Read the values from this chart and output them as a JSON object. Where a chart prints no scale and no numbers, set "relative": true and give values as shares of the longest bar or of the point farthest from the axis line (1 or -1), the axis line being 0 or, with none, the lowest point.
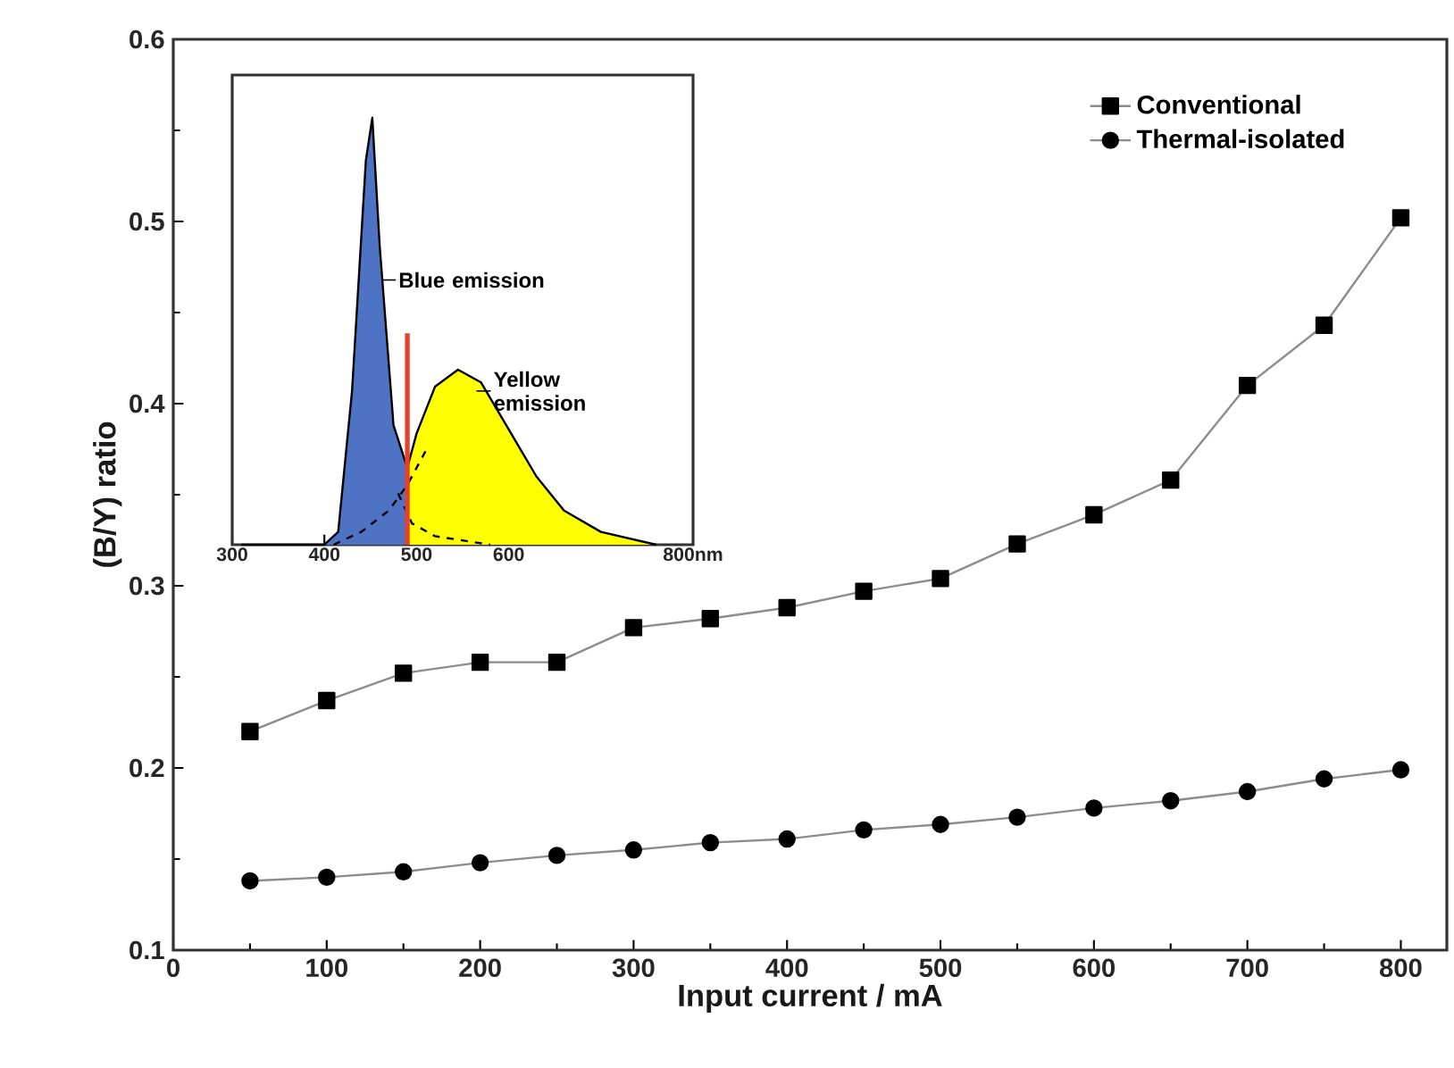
{
  "chart_data": [
    {
      "type": "line",
      "xlabel": "Input current / mA",
      "ylabel": "(B/Y) ratio",
      "x": [
        50,
        100,
        150,
        200,
        250,
        300,
        350,
        400,
        450,
        500,
        550,
        600,
        650,
        700,
        750,
        800
      ],
      "series": [
        {
          "name": "Conventional",
          "color": "#000000",
          "marker": "square",
          "values": [
            0.22,
            0.237,
            0.252,
            0.258,
            0.258,
            0.277,
            0.282,
            0.288,
            0.297,
            0.304,
            0.323,
            0.339,
            0.358,
            0.41,
            0.443,
            0.502
          ]
        },
        {
          "name": "Thermal-isolated",
          "color": "#000000",
          "marker": "circle",
          "values": [
            0.138,
            0.14,
            0.143,
            0.148,
            0.152,
            0.155,
            0.159,
            0.161,
            0.166,
            0.169,
            0.173,
            0.178,
            0.182,
            0.187,
            0.194,
            0.199
          ]
        }
      ],
      "xlim": [
        0,
        830
      ],
      "xticks": [
        0,
        100,
        200,
        300,
        400,
        500,
        600,
        700,
        800
      ],
      "ylim": [
        0.1,
        0.6
      ],
      "yticks": [
        0.1,
        0.2,
        0.3,
        0.4,
        0.5,
        0.6
      ],
      "legend": "top right",
      "grid": false
    },
    {
      "type": "area",
      "relative": true,
      "xlim": [
        300,
        800
      ],
      "xticks": [
        300,
        400,
        500,
        600,
        {
          "value": 800,
          "label": "800nm"
        }
      ],
      "series": [
        {
          "type": "area",
          "color": "#4f73c4",
          "x": [
            400,
            415,
            430,
            445,
            452,
            460,
            475,
            490
          ],
          "values": [
            0,
            0.03,
            0.36,
            0.9,
            1.0,
            0.7,
            0.28,
            0.18
          ]
        },
        {
          "type": "area",
          "color": "#ffff00",
          "x": [
            490,
            500,
            520,
            545,
            570,
            600,
            630,
            660,
            700,
            760
          ],
          "values": [
            0.18,
            0.26,
            0.37,
            0.41,
            0.38,
            0.27,
            0.16,
            0.08,
            0.03,
            0
          ]
        },
        {
          "type": "line",
          "line_style": "dashed",
          "color": "#000000",
          "x": [
            410,
            440,
            470,
            490,
            510
          ],
          "values": [
            0,
            0.03,
            0.08,
            0.14,
            0.22
          ]
        },
        {
          "type": "line",
          "line_style": "dashed",
          "color": "#000000",
          "x": [
            480,
            495,
            520,
            550,
            580
          ],
          "values": [
            0.12,
            0.05,
            0.02,
            0.01,
            0
          ]
        },
        {
          "type": "line",
          "color": "#000000",
          "x": [
            310,
            400,
            415,
            430,
            445,
            452,
            460,
            475,
            490,
            500,
            520,
            545,
            570,
            600,
            630,
            660,
            700,
            760
          ],
          "values": [
            0,
            0,
            0.03,
            0.36,
            0.9,
            1.0,
            0.7,
            0.28,
            0.18,
            0.26,
            0.37,
            0.41,
            0.38,
            0.27,
            0.16,
            0.08,
            0.03,
            0
          ]
        }
      ],
      "ref_lines": [
        {
          "axis": "x",
          "value": 490,
          "color": "#e8402a"
        }
      ],
      "annotations": [
        {
          "text": "Blue emission",
          "x": 462,
          "y": 0.62
        },
        {
          "text": "Yellow emission",
          "x": 565,
          "y": 0.36
        }
      ]
    }
  ]
}
